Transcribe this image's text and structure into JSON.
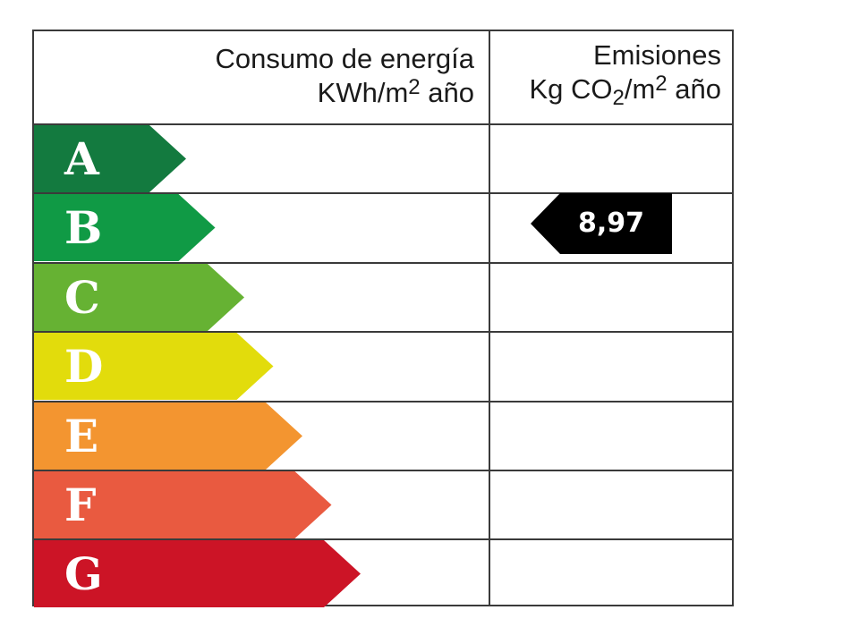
{
  "header": {
    "energy": {
      "line1": "Consumo de energía",
      "line2_prefix": "KWh/m",
      "line2_sup": "2",
      "line2_suffix": " año"
    },
    "emissions": {
      "line1": "Emisiones",
      "line2_a": "Kg CO",
      "line2_sub": "2",
      "line2_b": "/m",
      "line2_sup": "2",
      "line2_c": " año"
    }
  },
  "ratings": [
    {
      "letter": "A",
      "color": "#137a3f"
    },
    {
      "letter": "B",
      "color": "#109a45"
    },
    {
      "letter": "C",
      "color": "#66b233"
    },
    {
      "letter": "D",
      "color": "#e2dc0c"
    },
    {
      "letter": "E",
      "color": "#f39530"
    },
    {
      "letter": "F",
      "color": "#e95a40"
    },
    {
      "letter": "G",
      "color": "#cc1426"
    }
  ],
  "emissions_marker": {
    "value": "8,97",
    "rating": "B",
    "color": "#000000"
  },
  "chart_data": {
    "type": "table",
    "title": "Energy rating label",
    "columns": [
      "Consumo de energía KWh/m2 año",
      "Emisiones Kg CO2/m2 año"
    ],
    "categories": [
      "A",
      "B",
      "C",
      "D",
      "E",
      "F",
      "G"
    ],
    "category_colors": [
      "#137a3f",
      "#109a45",
      "#66b233",
      "#e2dc0c",
      "#f39530",
      "#e95a40",
      "#cc1426"
    ],
    "energy_consumption": {
      "value": null,
      "rating": null
    },
    "emissions": {
      "value": 8.97,
      "display": "8,97",
      "rating": "B"
    }
  }
}
